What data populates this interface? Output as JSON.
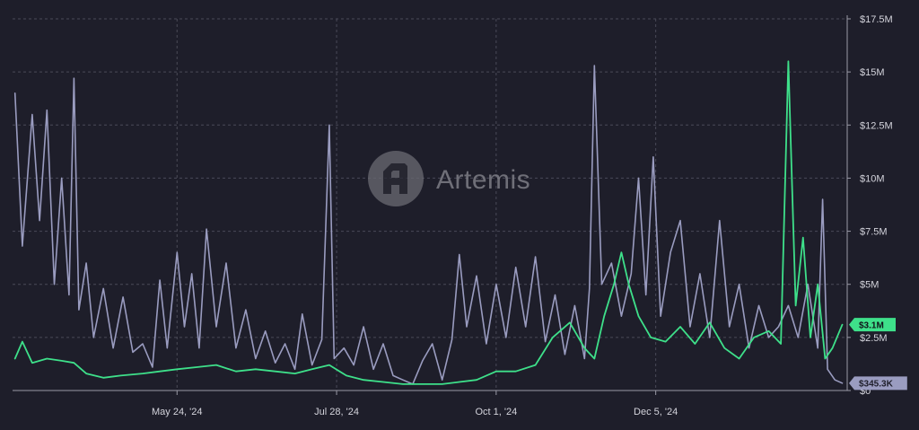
{
  "chart_data": {
    "type": "line",
    "title": "",
    "xlabel": "",
    "ylabel": "",
    "ylim": [
      0,
      17500000
    ],
    "y_ticks": [
      {
        "value": 0,
        "label": "$0"
      },
      {
        "value": 2500000,
        "label": "$2.5M"
      },
      {
        "value": 5000000,
        "label": "$5M"
      },
      {
        "value": 7500000,
        "label": "$7.5M"
      },
      {
        "value": 10000000,
        "label": "$10M"
      },
      {
        "value": 12500000,
        "label": "$12.5M"
      },
      {
        "value": 15000000,
        "label": "$15M"
      },
      {
        "value": 17500000,
        "label": "$17.5M"
      }
    ],
    "x_ticks": [
      {
        "date": "2024-05-24",
        "label": "May 24, '24"
      },
      {
        "date": "2024-07-28",
        "label": "Jul 28, '24"
      },
      {
        "date": "2024-10-01",
        "label": "Oct 1, '24"
      },
      {
        "date": "2024-12-05",
        "label": "Dec 5, '24"
      }
    ],
    "grid": true,
    "legend": "none",
    "y_axis_position": "right",
    "series": [
      {
        "color": "#9a9cc0",
        "end_label": "$345.3K",
        "points": [
          [
            "2024-03-19",
            14000000
          ],
          [
            "2024-03-22",
            6800000
          ],
          [
            "2024-03-26",
            13000000
          ],
          [
            "2024-03-29",
            8000000
          ],
          [
            "2024-04-01",
            13200000
          ],
          [
            "2024-04-04",
            5000000
          ],
          [
            "2024-04-07",
            10000000
          ],
          [
            "2024-04-10",
            4500000
          ],
          [
            "2024-04-12",
            14700000
          ],
          [
            "2024-04-14",
            3800000
          ],
          [
            "2024-04-17",
            6000000
          ],
          [
            "2024-04-20",
            2500000
          ],
          [
            "2024-04-24",
            4800000
          ],
          [
            "2024-04-28",
            2000000
          ],
          [
            "2024-05-02",
            4400000
          ],
          [
            "2024-05-06",
            1800000
          ],
          [
            "2024-05-10",
            2200000
          ],
          [
            "2024-05-14",
            1100000
          ],
          [
            "2024-05-17",
            5200000
          ],
          [
            "2024-05-20",
            2000000
          ],
          [
            "2024-05-24",
            6500000
          ],
          [
            "2024-05-27",
            3000000
          ],
          [
            "2024-05-30",
            5500000
          ],
          [
            "2024-06-02",
            2000000
          ],
          [
            "2024-06-05",
            7600000
          ],
          [
            "2024-06-09",
            3000000
          ],
          [
            "2024-06-13",
            6000000
          ],
          [
            "2024-06-17",
            2000000
          ],
          [
            "2024-06-21",
            3800000
          ],
          [
            "2024-06-25",
            1500000
          ],
          [
            "2024-06-29",
            2800000
          ],
          [
            "2024-07-03",
            1300000
          ],
          [
            "2024-07-07",
            2200000
          ],
          [
            "2024-07-11",
            1000000
          ],
          [
            "2024-07-14",
            3600000
          ],
          [
            "2024-07-18",
            1200000
          ],
          [
            "2024-07-22",
            2400000
          ],
          [
            "2024-07-25",
            12500000
          ],
          [
            "2024-07-27",
            1500000
          ],
          [
            "2024-07-31",
            2000000
          ],
          [
            "2024-08-04",
            1200000
          ],
          [
            "2024-08-08",
            3000000
          ],
          [
            "2024-08-12",
            1000000
          ],
          [
            "2024-08-16",
            2200000
          ],
          [
            "2024-08-20",
            700000
          ],
          [
            "2024-08-24",
            500000
          ],
          [
            "2024-08-28",
            300000
          ],
          [
            "2024-09-01",
            1400000
          ],
          [
            "2024-09-05",
            2200000
          ],
          [
            "2024-09-09",
            500000
          ],
          [
            "2024-09-13",
            2400000
          ],
          [
            "2024-09-16",
            6400000
          ],
          [
            "2024-09-19",
            3000000
          ],
          [
            "2024-09-23",
            5400000
          ],
          [
            "2024-09-27",
            2200000
          ],
          [
            "2024-10-01",
            5000000
          ],
          [
            "2024-10-05",
            2500000
          ],
          [
            "2024-10-09",
            5800000
          ],
          [
            "2024-10-13",
            3000000
          ],
          [
            "2024-10-17",
            6300000
          ],
          [
            "2024-10-21",
            2300000
          ],
          [
            "2024-10-25",
            4500000
          ],
          [
            "2024-10-29",
            1700000
          ],
          [
            "2024-11-02",
            4000000
          ],
          [
            "2024-11-06",
            1500000
          ],
          [
            "2024-11-08",
            4800000
          ],
          [
            "2024-11-10",
            15300000
          ],
          [
            "2024-11-13",
            5000000
          ],
          [
            "2024-11-17",
            6000000
          ],
          [
            "2024-11-21",
            3500000
          ],
          [
            "2024-11-25",
            5500000
          ],
          [
            "2024-11-28",
            10000000
          ],
          [
            "2024-12-01",
            4500000
          ],
          [
            "2024-12-04",
            11000000
          ],
          [
            "2024-12-07",
            3500000
          ],
          [
            "2024-12-11",
            6500000
          ],
          [
            "2024-12-15",
            8000000
          ],
          [
            "2024-12-19",
            3000000
          ],
          [
            "2024-12-23",
            5500000
          ],
          [
            "2024-12-27",
            2500000
          ],
          [
            "2024-12-31",
            8000000
          ],
          [
            "2025-01-04",
            3000000
          ],
          [
            "2025-01-08",
            5000000
          ],
          [
            "2025-01-12",
            2000000
          ],
          [
            "2025-01-16",
            4000000
          ],
          [
            "2025-01-20",
            2500000
          ],
          [
            "2025-01-24",
            3000000
          ],
          [
            "2025-01-28",
            4000000
          ],
          [
            "2025-02-01",
            2500000
          ],
          [
            "2025-02-05",
            5000000
          ],
          [
            "2025-02-09",
            2000000
          ],
          [
            "2025-02-11",
            9000000
          ],
          [
            "2025-02-13",
            1000000
          ],
          [
            "2025-02-16",
            500000
          ],
          [
            "2025-02-19",
            345300
          ]
        ]
      },
      {
        "color": "#3ee08a",
        "end_label": "$3.1M",
        "points": [
          [
            "2024-03-19",
            1500000
          ],
          [
            "2024-03-22",
            2300000
          ],
          [
            "2024-03-26",
            1300000
          ],
          [
            "2024-04-01",
            1500000
          ],
          [
            "2024-04-07",
            1400000
          ],
          [
            "2024-04-12",
            1300000
          ],
          [
            "2024-04-17",
            800000
          ],
          [
            "2024-04-24",
            600000
          ],
          [
            "2024-05-01",
            700000
          ],
          [
            "2024-05-10",
            800000
          ],
          [
            "2024-05-17",
            900000
          ],
          [
            "2024-05-24",
            1000000
          ],
          [
            "2024-06-01",
            1100000
          ],
          [
            "2024-06-09",
            1200000
          ],
          [
            "2024-06-17",
            900000
          ],
          [
            "2024-06-25",
            1000000
          ],
          [
            "2024-07-03",
            900000
          ],
          [
            "2024-07-11",
            800000
          ],
          [
            "2024-07-18",
            1000000
          ],
          [
            "2024-07-25",
            1200000
          ],
          [
            "2024-08-01",
            700000
          ],
          [
            "2024-08-08",
            500000
          ],
          [
            "2024-08-16",
            400000
          ],
          [
            "2024-08-24",
            300000
          ],
          [
            "2024-09-01",
            300000
          ],
          [
            "2024-09-09",
            300000
          ],
          [
            "2024-09-16",
            400000
          ],
          [
            "2024-09-23",
            500000
          ],
          [
            "2024-10-01",
            900000
          ],
          [
            "2024-10-09",
            900000
          ],
          [
            "2024-10-17",
            1200000
          ],
          [
            "2024-10-24",
            2500000
          ],
          [
            "2024-10-31",
            3200000
          ],
          [
            "2024-11-06",
            2000000
          ],
          [
            "2024-11-10",
            1500000
          ],
          [
            "2024-11-14",
            3500000
          ],
          [
            "2024-11-18",
            5000000
          ],
          [
            "2024-11-21",
            6500000
          ],
          [
            "2024-11-24",
            5000000
          ],
          [
            "2024-11-28",
            3500000
          ],
          [
            "2024-12-03",
            2500000
          ],
          [
            "2024-12-09",
            2300000
          ],
          [
            "2024-12-15",
            3000000
          ],
          [
            "2024-12-21",
            2200000
          ],
          [
            "2024-12-27",
            3200000
          ],
          [
            "2025-01-02",
            2000000
          ],
          [
            "2025-01-08",
            1500000
          ],
          [
            "2025-01-14",
            2500000
          ],
          [
            "2025-01-20",
            2800000
          ],
          [
            "2025-01-25",
            2200000
          ],
          [
            "2025-01-28",
            15500000
          ],
          [
            "2025-01-31",
            4000000
          ],
          [
            "2025-02-03",
            7200000
          ],
          [
            "2025-02-06",
            2500000
          ],
          [
            "2025-02-09",
            5000000
          ],
          [
            "2025-02-12",
            1500000
          ],
          [
            "2025-02-15",
            2000000
          ],
          [
            "2025-02-19",
            3100000
          ]
        ]
      }
    ]
  },
  "watermark": {
    "text": "Artemis"
  }
}
